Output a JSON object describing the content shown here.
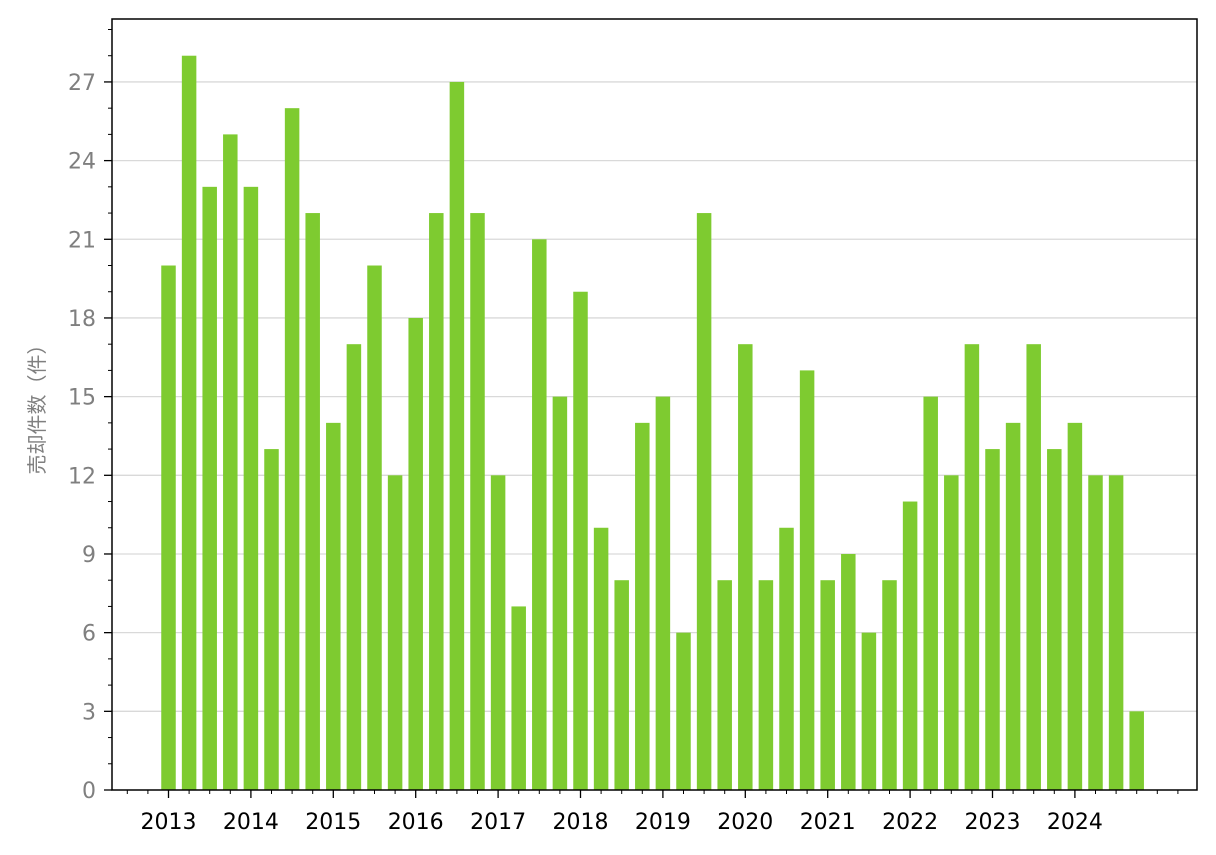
{
  "chart_data": {
    "type": "bar",
    "title": "",
    "xlabel": "",
    "ylabel": "売却件数（件）",
    "ylim": [
      0,
      29.4
    ],
    "yticks": [
      0,
      3,
      6,
      9,
      12,
      15,
      18,
      21,
      24,
      27
    ],
    "y_minor_step": 1,
    "grid": "horizontal",
    "year_labels": [
      "2013",
      "2014",
      "2015",
      "2016",
      "2017",
      "2018",
      "2019",
      "2020",
      "2021",
      "2022",
      "2023",
      "2024"
    ],
    "periods_per_year": 4,
    "categories": [
      "2013 Q1",
      "2013 Q2",
      "2013 Q3",
      "2013 Q4",
      "2014 Q1",
      "2014 Q2",
      "2014 Q3",
      "2014 Q4",
      "2015 Q1",
      "2015 Q2",
      "2015 Q3",
      "2015 Q4",
      "2016 Q1",
      "2016 Q2",
      "2016 Q3",
      "2016 Q4",
      "2017 Q1",
      "2017 Q2",
      "2017 Q3",
      "2017 Q4",
      "2018 Q1",
      "2018 Q2",
      "2018 Q3",
      "2018 Q4",
      "2019 Q1",
      "2019 Q2",
      "2019 Q3",
      "2019 Q4",
      "2020 Q1",
      "2020 Q2",
      "2020 Q3",
      "2020 Q4",
      "2021 Q1",
      "2021 Q2",
      "2021 Q3",
      "2021 Q4",
      "2022 Q1",
      "2022 Q2",
      "2022 Q3",
      "2022 Q4",
      "2023 Q1",
      "2023 Q2",
      "2023 Q3",
      "2023 Q4",
      "2024 Q1",
      "2024 Q2",
      "2024 Q3",
      "2024 Q4"
    ],
    "values": [
      20,
      28,
      23,
      25,
      23,
      13,
      26,
      22,
      14,
      17,
      20,
      12,
      18,
      22,
      27,
      22,
      12,
      7,
      21,
      15,
      19,
      10,
      8,
      14,
      15,
      6,
      22,
      8,
      17,
      8,
      10,
      16,
      8,
      9,
      6,
      8,
      11,
      15,
      12,
      17,
      13,
      14,
      17,
      13,
      14,
      12,
      12,
      3
    ],
    "colors": {
      "bar": "#7ecb30",
      "grid": "#d9d9d9",
      "axis": "#000000",
      "ytick_text": "#7f7f7f",
      "xtick_text": "#000000"
    }
  }
}
